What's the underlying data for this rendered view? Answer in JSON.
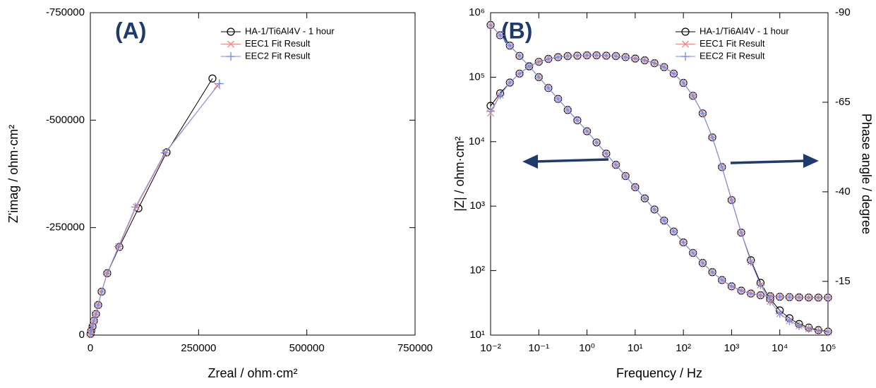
{
  "chart_data": [
    {
      "type": "line",
      "panel_label": "(A)",
      "x_label": "Zreal / ohm·cm²",
      "y_label": "Z'imag / ohm·cm²",
      "xlim": [
        0,
        750000
      ],
      "xticks": [
        0,
        250000,
        500000,
        750000
      ],
      "ylim": [
        0,
        -750000
      ],
      "yticks": [
        0,
        -250000,
        -500000,
        -750000
      ],
      "legend": "top-right",
      "series": [
        {
          "name": "HA-1/Ti6Al4V - 1 hour",
          "color": "#000000",
          "marker": "circle",
          "x": [
            500,
            2000,
            5000,
            8000,
            13000,
            18000,
            26000,
            39000,
            67000,
            111000,
            176000,
            282000
          ],
          "values": [
            -3000,
            -10000,
            -20000,
            -33000,
            -49000,
            -70000,
            -101000,
            -144000,
            -205000,
            -295000,
            -425000,
            -597000
          ]
        },
        {
          "name": "EEC1 Fit Result",
          "color": "#f08a84",
          "marker": "x",
          "x": [
            500,
            2000,
            5000,
            8000,
            13000,
            18000,
            26000,
            39000,
            66000,
            106000,
            173000,
            293000
          ],
          "values": [
            -3000,
            -10000,
            -20000,
            -33000,
            -49000,
            -70000,
            -101000,
            -144000,
            -206000,
            -298000,
            -423000,
            -580000
          ]
        },
        {
          "name": "EEC2 Fit Result",
          "color": "#7b8fe3",
          "marker": "plus",
          "x": [
            500,
            2000,
            5000,
            8000,
            13000,
            18000,
            26000,
            39000,
            65000,
            104000,
            172000,
            298000
          ],
          "values": [
            -3000,
            -10000,
            -20000,
            -33000,
            -49000,
            -70000,
            -101000,
            -144000,
            -206000,
            -298000,
            -424000,
            -585000
          ]
        }
      ]
    },
    {
      "type": "line",
      "panel_label": "(B)",
      "x_label": "Frequency / Hz",
      "y_label": "|Z| / ohm·cm²",
      "y2_label": "Phase angle / degree",
      "xlog": true,
      "ylog": true,
      "xlim": [
        0.01,
        100000
      ],
      "xticks": [
        {
          "value": 0.01,
          "label": "10⁻²"
        },
        {
          "value": 0.1,
          "label": "10⁻¹"
        },
        {
          "value": 1,
          "label": "10⁰"
        },
        {
          "value": 10,
          "label": "10¹"
        },
        {
          "value": 100,
          "label": "10²"
        },
        {
          "value": 1000,
          "label": "10³"
        },
        {
          "value": 10000,
          "label": "10⁴"
        },
        {
          "value": 100000,
          "label": "10⁵"
        }
      ],
      "ylim": [
        10,
        1000000
      ],
      "yticks": [
        {
          "value": 10,
          "label": "10¹"
        },
        {
          "value": 100,
          "label": "10²"
        },
        {
          "value": 1000,
          "label": "10³"
        },
        {
          "value": 10000,
          "label": "10⁴"
        },
        {
          "value": 100000,
          "label": "10⁵"
        },
        {
          "value": 1000000,
          "label": "10⁶"
        }
      ],
      "y2lim": [
        0,
        -90
      ],
      "y2ticks": [
        -15,
        -40,
        -65,
        -90
      ],
      "legend": "top-right",
      "x": [
        0.01,
        0.0158,
        0.0251,
        0.0398,
        0.0631,
        0.1,
        0.158,
        0.251,
        0.398,
        0.631,
        1,
        1.58,
        2.51,
        3.98,
        6.31,
        10,
        15.8,
        25.1,
        39.8,
        63.1,
        100,
        158,
        251,
        398,
        631,
        1000,
        1585,
        2512,
        3981,
        6310,
        10000,
        15849,
        25119,
        39811,
        63096,
        100000
      ],
      "series": [
        {
          "name": "HA-1/Ti6Al4V - 1 hour",
          "color": "#000000",
          "marker": "circle",
          "values": [
            646000,
            447000,
            309000,
            214000,
            148000,
            100000,
            68000,
            46000,
            31000,
            21400,
            14500,
            9720,
            6520,
            4370,
            2930,
            1965,
            1318,
            887,
            597,
            404,
            274,
            188,
            131.5,
            94.7,
            71.4,
            57.1,
            48.9,
            44.1,
            41.5,
            40.1,
            39.3,
            38.8,
            38.5,
            38.3,
            38.2,
            38.2
          ]
        },
        {
          "color": "#000000",
          "marker": "circle",
          "axis": "y2",
          "values": [
            -64,
            -67.5,
            -70.5,
            -73,
            -75,
            -76.3,
            -77.1,
            -77.6,
            -77.9,
            -78.0,
            -78.1,
            -78.1,
            -78.0,
            -77.9,
            -77.6,
            -77.2,
            -76.7,
            -75.9,
            -74.8,
            -73.0,
            -70.4,
            -66.8,
            -61.9,
            -55.2,
            -46.9,
            -37.7,
            -28.6,
            -20.9,
            -14.6,
            -10.1,
            -6.9,
            -4.7,
            -3.1,
            -2.1,
            -1.4,
            -1.0
          ]
        },
        {
          "name": "EEC1 Fit Result",
          "color": "#f08a84",
          "marker": "x",
          "values": [
            640000,
            445000,
            308000,
            214000,
            148000,
            100000,
            68000,
            46000,
            31000,
            21400,
            14500,
            9720,
            6520,
            4370,
            2930,
            1965,
            1318,
            887,
            597,
            404,
            274,
            188,
            131.5,
            94.7,
            71.4,
            57.1,
            48.9,
            44.1,
            41.5,
            40.1,
            39.3,
            38.8,
            38.5,
            38.3,
            38.2,
            38.2
          ]
        },
        {
          "color": "#f08a84",
          "marker": "x",
          "axis": "y2",
          "values": [
            -62,
            -67,
            -70.5,
            -73,
            -75,
            -76.3,
            -77.1,
            -77.6,
            -77.9,
            -78.0,
            -78.1,
            -78.1,
            -78.0,
            -77.9,
            -77.6,
            -77.2,
            -76.7,
            -75.9,
            -74.8,
            -73.0,
            -70.4,
            -66.8,
            -61.9,
            -55.2,
            -46.9,
            -37.7,
            -28.6,
            -20.5,
            -14.0,
            -9.4,
            -6.0,
            -4.0,
            -2.6,
            -1.8,
            -1.2,
            -0.9
          ]
        },
        {
          "name": "EEC2 Fit Result",
          "color": "#7b8fe3",
          "marker": "plus",
          "values": [
            642000,
            446000,
            309000,
            214000,
            148000,
            100000,
            68000,
            46000,
            31000,
            21400,
            14500,
            9720,
            6520,
            4370,
            2930,
            1965,
            1318,
            887,
            597,
            404,
            274,
            188,
            131.5,
            94.7,
            71.4,
            57.1,
            48.9,
            44.1,
            41.5,
            40.1,
            39.3,
            38.8,
            38.5,
            38.3,
            38.2,
            38.2
          ]
        },
        {
          "color": "#7b8fe3",
          "marker": "plus",
          "axis": "y2",
          "values": [
            -62.5,
            -67,
            -70.5,
            -73,
            -75,
            -76.3,
            -77.1,
            -77.6,
            -77.9,
            -78.0,
            -78.1,
            -78.1,
            -78.0,
            -77.9,
            -77.6,
            -77.2,
            -76.7,
            -75.9,
            -74.8,
            -73.0,
            -70.4,
            -66.8,
            -61.9,
            -55.2,
            -46.9,
            -37.7,
            -28.6,
            -20.5,
            -14.0,
            -9.4,
            -6.0,
            -4.0,
            -2.6,
            -1.8,
            -1.2,
            -0.9
          ]
        }
      ]
    }
  ]
}
